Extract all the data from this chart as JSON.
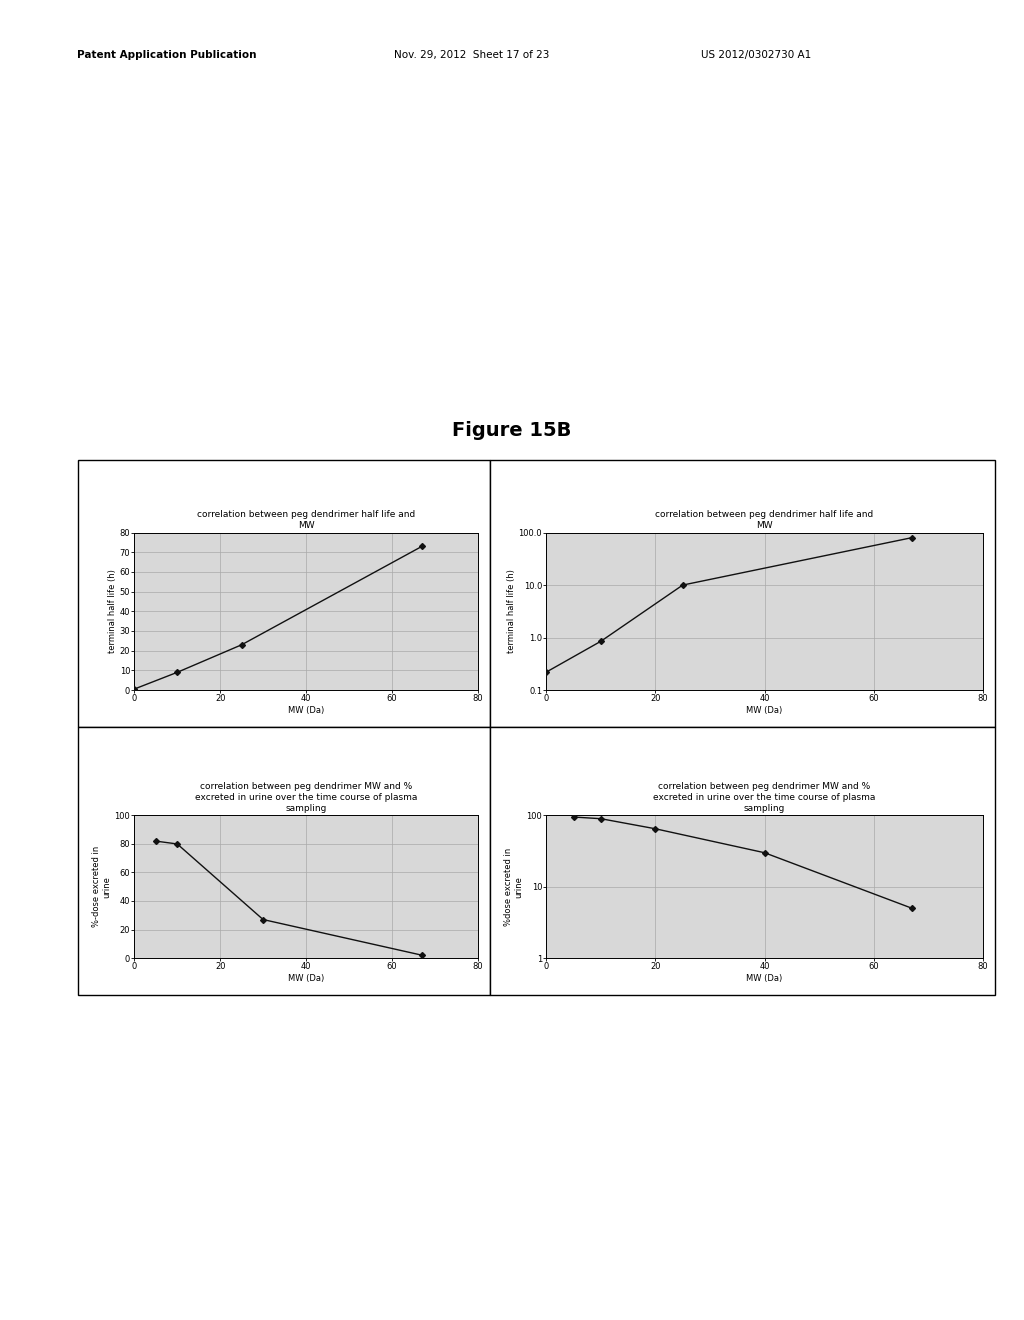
{
  "figure_title": "Figure 15B",
  "header_left": "Patent Application Publication",
  "header_mid": "Nov. 29, 2012  Sheet 17 of 23",
  "header_right": "US 2012/0302730 A1",
  "top_left": {
    "title": "correlation between peg dendrimer half life and\nMW",
    "xlabel": "MW (Da)",
    "ylabel": "terminal half life (h)",
    "xdata": [
      0,
      10,
      25,
      67
    ],
    "ydata": [
      0.5,
      9,
      23,
      73
    ],
    "xlim": [
      0,
      80
    ],
    "ylim": [
      0,
      80
    ],
    "xticks": [
      0,
      20,
      40,
      60,
      80
    ],
    "yticks": [
      0,
      10,
      20,
      30,
      40,
      50,
      60,
      70,
      80
    ]
  },
  "top_right": {
    "title": "correlation between peg dendrimer half life and\nMW",
    "xlabel": "MW (Da)",
    "ylabel": "terminal half life (h)",
    "xdata": [
      0,
      10,
      25,
      67
    ],
    "ydata": [
      0.22,
      0.85,
      10,
      80
    ],
    "xlim": [
      0,
      80
    ],
    "ylim_log": [
      0.1,
      100
    ],
    "xticks": [
      0,
      20,
      40,
      60,
      80
    ],
    "yticks_log": [
      0.1,
      1,
      10,
      100
    ]
  },
  "bottom_left": {
    "title": "correlation between peg dendrimer MW and %\nexcreted in urine over the time course of plasma\nsampling",
    "xlabel": "MW (Da)",
    "ylabel": "%-dose excreted in\nurine",
    "xdata": [
      5,
      10,
      30,
      67
    ],
    "ydata": [
      82,
      80,
      27,
      2
    ],
    "xlim": [
      0,
      80
    ],
    "ylim": [
      0,
      100
    ],
    "xticks": [
      0,
      20,
      40,
      60,
      80
    ],
    "yticks": [
      0,
      20,
      40,
      60,
      80,
      100
    ]
  },
  "bottom_right": {
    "title": "correlation between peg dendrimer MW and %\nexcreted in urine over the time course of plasma\nsampling",
    "xlabel": "MW (Da)",
    "ylabel": "%dose excreted in\nurine",
    "xdata": [
      5,
      10,
      20,
      40,
      67
    ],
    "ydata": [
      95,
      90,
      65,
      30,
      5
    ],
    "xlim": [
      0,
      80
    ],
    "ylim_log": [
      1,
      100
    ],
    "xticks": [
      0,
      20,
      40,
      60,
      80
    ],
    "yticks_log": [
      1,
      10,
      100
    ]
  },
  "line_color": "#111111",
  "marker_style": "D",
  "marker_size": 3,
  "marker_color": "#111111",
  "title_fontsize": 6.5,
  "axis_label_fontsize": 6,
  "tick_fontsize": 6,
  "figure_title_fontsize": 14,
  "header_fontsize": 7.5,
  "plot_bg_color": "#d8d8d8",
  "grid_color": "#aaaaaa"
}
